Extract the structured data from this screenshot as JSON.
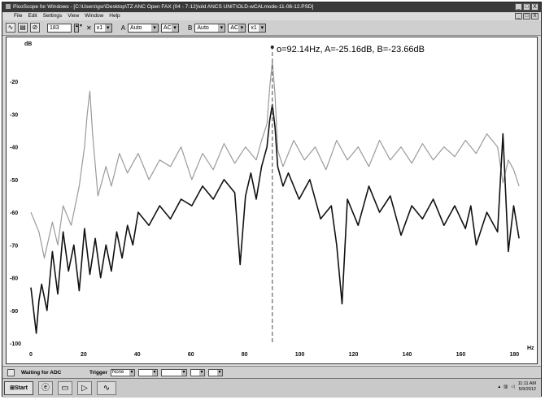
{
  "window": {
    "title": "PicoScope for Windows - [C:\\Users\\gsr\\Desktop\\TZ ANC Open FAX (04 - 7-12)\\old ANCS UNIT\\OLD-wCALmode-11-08-12.PSD]",
    "buttons": [
      "_",
      "□",
      "X"
    ]
  },
  "menu": {
    "items": [
      "File",
      "Edit",
      "Settings",
      "View",
      "Window",
      "Help"
    ]
  },
  "toolbar": {
    "samples": "183",
    "x_label": "x1",
    "channel_a_label": "A",
    "channel_a_range": "Auto",
    "channel_a_coupling": "AC",
    "channel_b_label": "B",
    "channel_b_range": "Auto",
    "channel_b_coupling": "AC",
    "zoom": "x1"
  },
  "plot": {
    "readout": "o=92.14Hz, A=-25.16dB, B=-23.66dB",
    "y_unit": "dB",
    "x_unit": "Hz"
  },
  "chart_data": {
    "type": "line",
    "xlabel": "Hz",
    "ylabel": "dB",
    "xlim": [
      0,
      185
    ],
    "ylim": [
      -100,
      -10
    ],
    "xticks": [
      0,
      20,
      40,
      60,
      80,
      100,
      120,
      140,
      160,
      180
    ],
    "yticks": [
      -20,
      -30,
      -40,
      -50,
      -60,
      -70,
      -80,
      -90,
      -100
    ],
    "cursor_x": 90,
    "series": [
      {
        "color": "#9a9a9a",
        "x": [
          0,
          3,
          5,
          8,
          10,
          12,
          15,
          18,
          20,
          21,
          22,
          23,
          25,
          28,
          30,
          33,
          36,
          40,
          44,
          48,
          52,
          56,
          60,
          64,
          68,
          72,
          76,
          80,
          84,
          86,
          88,
          89,
          90,
          91,
          92,
          94,
          98,
          102,
          106,
          110,
          114,
          118,
          122,
          126,
          130,
          134,
          138,
          142,
          146,
          150,
          154,
          158,
          162,
          166,
          170,
          174,
          176,
          178,
          180,
          182
        ],
        "y": [
          -60,
          -66,
          -74,
          -63,
          -70,
          -58,
          -64,
          -52,
          -40,
          -30,
          -23,
          -36,
          -55,
          -46,
          -52,
          -42,
          -48,
          -42,
          -50,
          -44,
          -46,
          -40,
          -50,
          -42,
          -47,
          -39,
          -45,
          -40,
          -44,
          -38,
          -33,
          -22,
          -14,
          -24,
          -41,
          -46,
          -38,
          -44,
          -40,
          -47,
          -38,
          -44,
          -40,
          -46,
          -38,
          -44,
          -40,
          -45,
          -39,
          -44,
          -40,
          -43,
          -38,
          -42,
          -36,
          -40,
          -51,
          -44,
          -47,
          -52
        ]
      },
      {
        "color": "#111111",
        "x": [
          0,
          2,
          3,
          4,
          6,
          8,
          10,
          12,
          14,
          16,
          18,
          20,
          22,
          24,
          26,
          28,
          30,
          32,
          34,
          36,
          38,
          40,
          44,
          48,
          52,
          56,
          60,
          64,
          68,
          72,
          76,
          78,
          80,
          82,
          84,
          86,
          88,
          89,
          90,
          91,
          92,
          94,
          96,
          100,
          104,
          108,
          112,
          114,
          116,
          118,
          122,
          126,
          130,
          134,
          138,
          142,
          146,
          150,
          154,
          158,
          162,
          164,
          166,
          170,
          174,
          176,
          178,
          180,
          182
        ],
        "y": [
          -83,
          -97,
          -87,
          -82,
          -90,
          -72,
          -85,
          -66,
          -78,
          -70,
          -84,
          -65,
          -79,
          -68,
          -80,
          -70,
          -78,
          -66,
          -74,
          -64,
          -70,
          -60,
          -64,
          -58,
          -62,
          -56,
          -58,
          -52,
          -56,
          -50,
          -54,
          -76,
          -55,
          -48,
          -56,
          -46,
          -40,
          -32,
          -27,
          -34,
          -46,
          -52,
          -48,
          -56,
          -50,
          -62,
          -58,
          -70,
          -88,
          -56,
          -64,
          -52,
          -60,
          -55,
          -67,
          -58,
          -62,
          -56,
          -64,
          -58,
          -65,
          -58,
          -70,
          -60,
          -66,
          -36,
          -72,
          -58,
          -68
        ]
      }
    ]
  },
  "status": {
    "text": "Waiting for ADC",
    "trigger_label": "Trigger",
    "trigger_mode": "None"
  },
  "taskbar": {
    "start_label": "Start",
    "clock_time": "11:11 AM",
    "clock_date": "5/9/2012"
  }
}
